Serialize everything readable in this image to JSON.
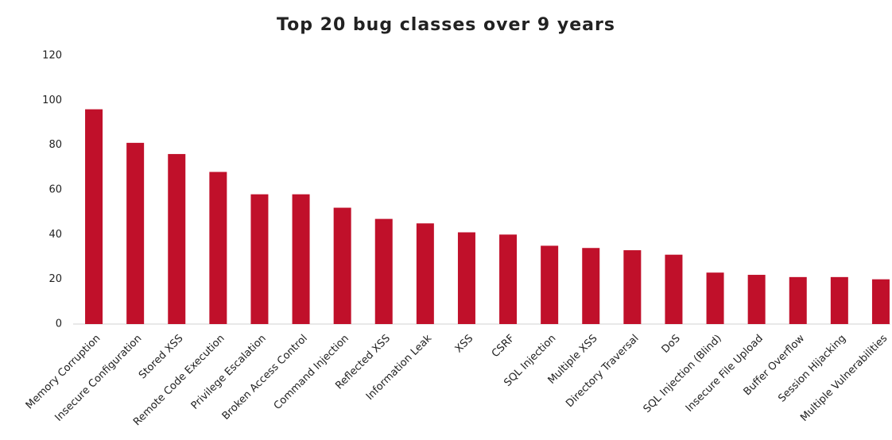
{
  "chart_data": {
    "type": "bar",
    "title": "Top 20 bug classes over 9 years",
    "categories": [
      "Memory Corruption",
      "Insecure Configuration",
      "Stored XSS",
      "Remote Code Execution",
      "Privilege Escalation",
      "Broken Access Control",
      "Command Injection",
      "Reflected XSS",
      "Information Leak",
      "XSS",
      "CSRF",
      "SQL Injection",
      "Multiple XSS",
      "Directory Traversal",
      "DoS",
      "SQL Injection (Blind)",
      "Insecure File Upload",
      "Buffer Overflow",
      "Session Hijacking",
      "Multiple Vulnerabilities"
    ],
    "values": [
      96,
      81,
      76,
      68,
      58,
      58,
      52,
      47,
      45,
      41,
      40,
      35,
      34,
      33,
      31,
      23,
      22,
      21,
      21,
      20
    ],
    "color": "#c0102a",
    "ylim": [
      0,
      120
    ],
    "yticks": [
      0,
      20,
      40,
      60,
      80,
      100,
      120
    ],
    "grid": false
  }
}
